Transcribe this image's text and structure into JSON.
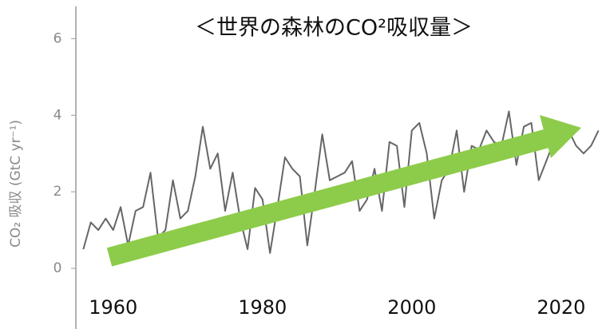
{
  "chart_data": {
    "type": "line",
    "title": "＜世界の森林のCO²吸収量＞",
    "y_label": "CO₂ 吸収 (GtC yr⁻¹)",
    "x": [
      1956,
      1957,
      1958,
      1959,
      1960,
      1961,
      1962,
      1963,
      1964,
      1965,
      1966,
      1967,
      1968,
      1969,
      1970,
      1971,
      1972,
      1973,
      1974,
      1975,
      1976,
      1977,
      1978,
      1979,
      1980,
      1981,
      1982,
      1983,
      1984,
      1985,
      1986,
      1987,
      1988,
      1989,
      1990,
      1991,
      1992,
      1993,
      1994,
      1995,
      1996,
      1997,
      1998,
      1999,
      2000,
      2001,
      2002,
      2003,
      2004,
      2005,
      2006,
      2007,
      2008,
      2009,
      2010,
      2011,
      2012,
      2013,
      2014,
      2015,
      2016,
      2017,
      2018,
      2019,
      2020,
      2021,
      2022,
      2023,
      2024,
      2025
    ],
    "series": [
      {
        "name": "CO₂ 吸収",
        "color": "#666666",
        "values": [
          0.5,
          1.2,
          1.0,
          1.3,
          1.0,
          1.6,
          0.6,
          1.5,
          1.6,
          2.5,
          0.8,
          1.0,
          2.3,
          1.3,
          1.5,
          2.4,
          3.7,
          2.6,
          3.0,
          1.5,
          2.5,
          1.3,
          0.5,
          2.1,
          1.8,
          0.4,
          1.6,
          2.9,
          2.6,
          2.4,
          0.6,
          2.0,
          3.5,
          2.3,
          2.4,
          2.5,
          2.8,
          1.5,
          1.8,
          2.6,
          1.5,
          3.3,
          3.2,
          1.6,
          3.6,
          3.8,
          3.0,
          1.3,
          2.3,
          2.6,
          3.6,
          2.0,
          3.2,
          3.1,
          3.6,
          3.3,
          3.2,
          4.1,
          2.7,
          3.7,
          3.8,
          2.3,
          2.8,
          3.3,
          3.7,
          3.6,
          3.2,
          3.0,
          3.2,
          3.6
        ]
      }
    ],
    "xlim": [
      1955,
      2026
    ],
    "xticks": [
      1960,
      1980,
      2000,
      2020
    ],
    "ylim": [
      -1.5,
      6.8
    ],
    "yticks": [
      0,
      2,
      4,
      6
    ]
  }
}
